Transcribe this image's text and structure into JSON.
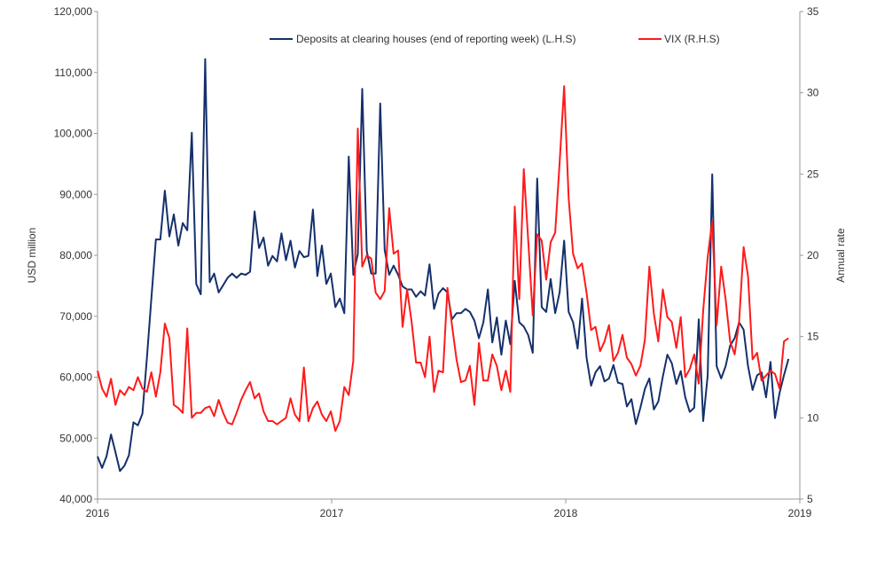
{
  "chart_data": {
    "type": "line",
    "title": "",
    "frequency": "weekly",
    "xlim": [
      2016,
      2019
    ],
    "x_ticks": [
      "2016",
      "2017",
      "2018",
      "2019"
    ],
    "ylabel_left": "USD million",
    "ylabel_right": "Annual rate",
    "ylim_left": [
      40000,
      120000
    ],
    "ylim_right": [
      5,
      35
    ],
    "y_ticks_left": [
      "40,000",
      "50,000",
      "60,000",
      "70,000",
      "80,000",
      "90,000",
      "100,000",
      "110,000",
      "120,000"
    ],
    "y_ticks_right": [
      "5",
      "10",
      "15",
      "20",
      "25",
      "30",
      "35"
    ],
    "grid": false,
    "legend_placement": "top",
    "series": [
      {
        "name": "Deposits at clearing houses (end of reporting week) (L.H.S)",
        "axis": "left",
        "color": "#15306b",
        "values": [
          47000,
          45100,
          47000,
          50600,
          47700,
          44600,
          45500,
          47200,
          52600,
          52100,
          54000,
          63200,
          72900,
          82600,
          82600,
          90600,
          83100,
          86700,
          81600,
          85300,
          84100,
          100100,
          75300,
          73600,
          112200,
          75600,
          77000,
          73900,
          75100,
          76300,
          77000,
          76300,
          77000,
          76800,
          77300,
          87200,
          81200,
          82900,
          78300,
          79900,
          79000,
          83600,
          79200,
          82400,
          78000,
          80700,
          79700,
          79900,
          87500,
          76600,
          81600,
          75300,
          77000,
          71500,
          72900,
          70500,
          96200,
          76800,
          80200,
          107300,
          80700,
          77000,
          77000,
          104900,
          80900,
          76800,
          78300,
          76800,
          74900,
          74400,
          74400,
          73200,
          74100,
          73400,
          78500,
          71200,
          73700,
          74600,
          73900,
          69500,
          70500,
          70500,
          71200,
          70700,
          69300,
          66400,
          69000,
          74400,
          65700,
          69800,
          63700,
          69300,
          65400,
          75800,
          69000,
          68300,
          66900,
          64000,
          92600,
          71500,
          70700,
          76100,
          70500,
          73900,
          82400,
          70700,
          69000,
          64700,
          72900,
          63200,
          58600,
          60800,
          61800,
          59300,
          59800,
          62000,
          59100,
          58900,
          55200,
          56400,
          52300,
          55000,
          58100,
          59800,
          54700,
          56000,
          60100,
          63700,
          62300,
          58900,
          61000,
          56700,
          54300,
          55000,
          69500,
          52800,
          60300,
          93300,
          61800,
          59800,
          61800,
          65200,
          66400,
          69000,
          67800,
          61800,
          57900,
          60300,
          60800,
          56700,
          62500,
          53300,
          57400,
          60300,
          63000
        ]
      },
      {
        "name": "VIX (R.H.S)",
        "axis": "right",
        "color": "#ff1a1a",
        "values": [
          12.9,
          11.8,
          11.3,
          12.4,
          10.8,
          11.7,
          11.4,
          11.9,
          11.7,
          12.5,
          11.8,
          11.6,
          12.8,
          11.3,
          12.8,
          15.8,
          14.9,
          10.8,
          10.6,
          10.3,
          15.5,
          10.0,
          10.3,
          10.3,
          10.6,
          10.7,
          10.1,
          11.1,
          10.3,
          9.7,
          9.6,
          10.3,
          11.1,
          11.7,
          12.2,
          11.2,
          11.5,
          10.4,
          9.8,
          9.8,
          9.6,
          9.8,
          10.0,
          11.2,
          10.2,
          9.8,
          13.1,
          9.8,
          10.6,
          11.0,
          10.2,
          9.8,
          10.4,
          9.2,
          9.8,
          11.9,
          11.4,
          13.5,
          27.8,
          19.3,
          20.0,
          19.8,
          17.7,
          17.3,
          17.8,
          22.9,
          20.1,
          20.3,
          15.6,
          17.9,
          15.9,
          13.4,
          13.4,
          12.5,
          15.0,
          11.6,
          12.9,
          12.8,
          18.0,
          15.7,
          13.6,
          12.2,
          12.3,
          13.2,
          10.8,
          14.6,
          12.3,
          12.3,
          13.9,
          13.2,
          11.7,
          12.9,
          11.6,
          23.0,
          17.3,
          25.3,
          20.9,
          16.3,
          21.3,
          20.9,
          18.5,
          20.8,
          21.4,
          25.7,
          30.4,
          23.5,
          20.1,
          19.2,
          19.5,
          17.7,
          15.4,
          15.6,
          14.1,
          14.7,
          15.7,
          13.5,
          14.0,
          15.1,
          13.7,
          13.3,
          12.6,
          13.2,
          14.8,
          19.3,
          16.4,
          14.7,
          17.9,
          16.2,
          15.9,
          14.3,
          16.2,
          12.5,
          13.0,
          13.9,
          12.1,
          16.6,
          19.9,
          22.1,
          15.7,
          19.3,
          17.3,
          14.7,
          13.9,
          15.9,
          20.5,
          18.7,
          13.6,
          14.0,
          12.3,
          12.6,
          12.9,
          12.7,
          11.8,
          14.7,
          14.9
        ]
      }
    ]
  }
}
